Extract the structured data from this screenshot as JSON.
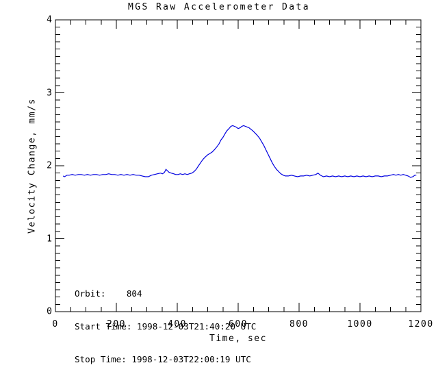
{
  "chart_data": {
    "type": "line",
    "title": "MGS Raw Accelerometer Data",
    "xlabel": "Time, sec",
    "ylabel": "Velocity Change, mm/s",
    "xlim": [
      0,
      1200
    ],
    "ylim": [
      0,
      4
    ],
    "xticks_major": [
      0,
      200,
      400,
      600,
      800,
      1000,
      1200
    ],
    "xtick_minor_step": 50,
    "yticks_major": [
      0,
      1,
      2,
      3,
      4
    ],
    "ytick_minor_step": 0.1,
    "grid": "off",
    "legend": "none",
    "line_color": "#0000e0",
    "frame_color": "#000000",
    "background": "#ffffff",
    "series": [
      {
        "name": "velocity-change",
        "points": [
          [
            25,
            1.86
          ],
          [
            30,
            1.85
          ],
          [
            38,
            1.87
          ],
          [
            45,
            1.87
          ],
          [
            55,
            1.88
          ],
          [
            65,
            1.87
          ],
          [
            75,
            1.88
          ],
          [
            85,
            1.88
          ],
          [
            95,
            1.87
          ],
          [
            105,
            1.88
          ],
          [
            115,
            1.87
          ],
          [
            125,
            1.88
          ],
          [
            135,
            1.88
          ],
          [
            145,
            1.87
          ],
          [
            155,
            1.88
          ],
          [
            165,
            1.88
          ],
          [
            175,
            1.89
          ],
          [
            185,
            1.88
          ],
          [
            195,
            1.88
          ],
          [
            205,
            1.87
          ],
          [
            215,
            1.88
          ],
          [
            225,
            1.87
          ],
          [
            235,
            1.88
          ],
          [
            245,
            1.87
          ],
          [
            255,
            1.88
          ],
          [
            265,
            1.87
          ],
          [
            275,
            1.87
          ],
          [
            285,
            1.86
          ],
          [
            295,
            1.85
          ],
          [
            305,
            1.85
          ],
          [
            315,
            1.87
          ],
          [
            325,
            1.88
          ],
          [
            335,
            1.89
          ],
          [
            345,
            1.9
          ],
          [
            352,
            1.89
          ],
          [
            358,
            1.91
          ],
          [
            363,
            1.95
          ],
          [
            368,
            1.93
          ],
          [
            373,
            1.91
          ],
          [
            380,
            1.9
          ],
          [
            388,
            1.89
          ],
          [
            395,
            1.88
          ],
          [
            403,
            1.88
          ],
          [
            410,
            1.89
          ],
          [
            418,
            1.88
          ],
          [
            425,
            1.89
          ],
          [
            433,
            1.88
          ],
          [
            440,
            1.89
          ],
          [
            448,
            1.9
          ],
          [
            455,
            1.92
          ],
          [
            462,
            1.95
          ],
          [
            470,
            2.0
          ],
          [
            478,
            2.05
          ],
          [
            485,
            2.09
          ],
          [
            492,
            2.12
          ],
          [
            500,
            2.15
          ],
          [
            508,
            2.17
          ],
          [
            515,
            2.19
          ],
          [
            522,
            2.22
          ],
          [
            530,
            2.26
          ],
          [
            537,
            2.3
          ],
          [
            543,
            2.35
          ],
          [
            550,
            2.39
          ],
          [
            557,
            2.44
          ],
          [
            563,
            2.48
          ],
          [
            570,
            2.51
          ],
          [
            576,
            2.54
          ],
          [
            582,
            2.55
          ],
          [
            588,
            2.54
          ],
          [
            594,
            2.53
          ],
          [
            600,
            2.51
          ],
          [
            606,
            2.52
          ],
          [
            612,
            2.54
          ],
          [
            618,
            2.55
          ],
          [
            624,
            2.54
          ],
          [
            630,
            2.53
          ],
          [
            636,
            2.52
          ],
          [
            642,
            2.5
          ],
          [
            648,
            2.48
          ],
          [
            655,
            2.45
          ],
          [
            662,
            2.42
          ],
          [
            670,
            2.38
          ],
          [
            677,
            2.33
          ],
          [
            684,
            2.28
          ],
          [
            691,
            2.22
          ],
          [
            698,
            2.16
          ],
          [
            705,
            2.1
          ],
          [
            712,
            2.04
          ],
          [
            719,
            1.99
          ],
          [
            726,
            1.95
          ],
          [
            733,
            1.92
          ],
          [
            740,
            1.89
          ],
          [
            748,
            1.87
          ],
          [
            755,
            1.86
          ],
          [
            765,
            1.86
          ],
          [
            775,
            1.87
          ],
          [
            785,
            1.86
          ],
          [
            795,
            1.85
          ],
          [
            805,
            1.86
          ],
          [
            815,
            1.86
          ],
          [
            825,
            1.87
          ],
          [
            835,
            1.86
          ],
          [
            845,
            1.87
          ],
          [
            855,
            1.88
          ],
          [
            862,
            1.9
          ],
          [
            870,
            1.87
          ],
          [
            880,
            1.85
          ],
          [
            890,
            1.86
          ],
          [
            900,
            1.85
          ],
          [
            910,
            1.86
          ],
          [
            920,
            1.85
          ],
          [
            930,
            1.86
          ],
          [
            940,
            1.85
          ],
          [
            950,
            1.86
          ],
          [
            960,
            1.85
          ],
          [
            970,
            1.86
          ],
          [
            980,
            1.85
          ],
          [
            990,
            1.86
          ],
          [
            1000,
            1.85
          ],
          [
            1010,
            1.86
          ],
          [
            1020,
            1.85
          ],
          [
            1030,
            1.86
          ],
          [
            1040,
            1.85
          ],
          [
            1050,
            1.86
          ],
          [
            1060,
            1.86
          ],
          [
            1070,
            1.85
          ],
          [
            1080,
            1.86
          ],
          [
            1090,
            1.86
          ],
          [
            1100,
            1.87
          ],
          [
            1110,
            1.88
          ],
          [
            1118,
            1.87
          ],
          [
            1126,
            1.88
          ],
          [
            1134,
            1.87
          ],
          [
            1142,
            1.88
          ],
          [
            1150,
            1.87
          ],
          [
            1158,
            1.86
          ],
          [
            1166,
            1.84
          ],
          [
            1174,
            1.85
          ],
          [
            1180,
            1.87
          ],
          [
            1185,
            1.87
          ]
        ]
      }
    ]
  },
  "annotations": {
    "orbit_line": "Orbit:    804",
    "start_line": "Start Time: 1998-12-03T21:40:20 UTC",
    "stop_line": "Stop Time: 1998-12-03T22:00:19 UTC"
  },
  "layout_colors": {
    "text": "#000000"
  }
}
